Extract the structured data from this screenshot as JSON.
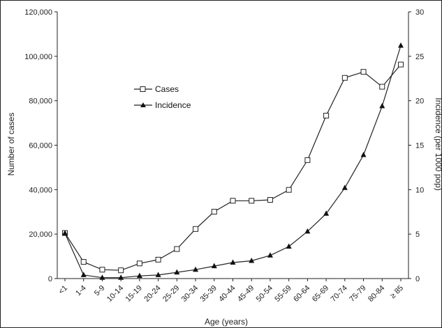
{
  "chart_data": {
    "type": "line",
    "x_label": "Age (years)",
    "y_label_left": "Number of cases",
    "y_label_right": "Incidence (per 1000 pop)",
    "categories": [
      "<1",
      "1-4",
      "5-9",
      "10-14",
      "15-19",
      "20-24",
      "25-29",
      "30-34",
      "35-39",
      "40-44",
      "45-49",
      "50-54",
      "55-59",
      "60-64",
      "65-69",
      "70-74",
      "75-79",
      "80-84",
      "≥ 85"
    ],
    "y_left": {
      "min": 0,
      "max": 120000,
      "ticks": [
        "0",
        "20,000",
        "40,000",
        "60,000",
        "80,000",
        "100,000",
        "120,000"
      ]
    },
    "y_right": {
      "min": 0,
      "max": 30,
      "ticks": [
        "0",
        "5",
        "10",
        "15",
        "20",
        "25",
        "30"
      ]
    },
    "series": [
      {
        "name": "Cases",
        "axis": "left",
        "marker": "open-square",
        "values": [
          20500,
          7500,
          4000,
          3700,
          6800,
          8500,
          13300,
          22300,
          30100,
          35000,
          35000,
          35400,
          39900,
          53300,
          73300,
          90300,
          93000,
          86300,
          96300
        ]
      },
      {
        "name": "Incidence",
        "axis": "right",
        "marker": "filled-triangle",
        "values": [
          5.1,
          0.4,
          0.1,
          0.1,
          0.3,
          0.4,
          0.7,
          1.0,
          1.4,
          1.8,
          2.0,
          2.6,
          3.6,
          5.3,
          7.3,
          10.2,
          13.9,
          19.4,
          26.2
        ]
      }
    ],
    "legend_position": "upper-left inside"
  }
}
